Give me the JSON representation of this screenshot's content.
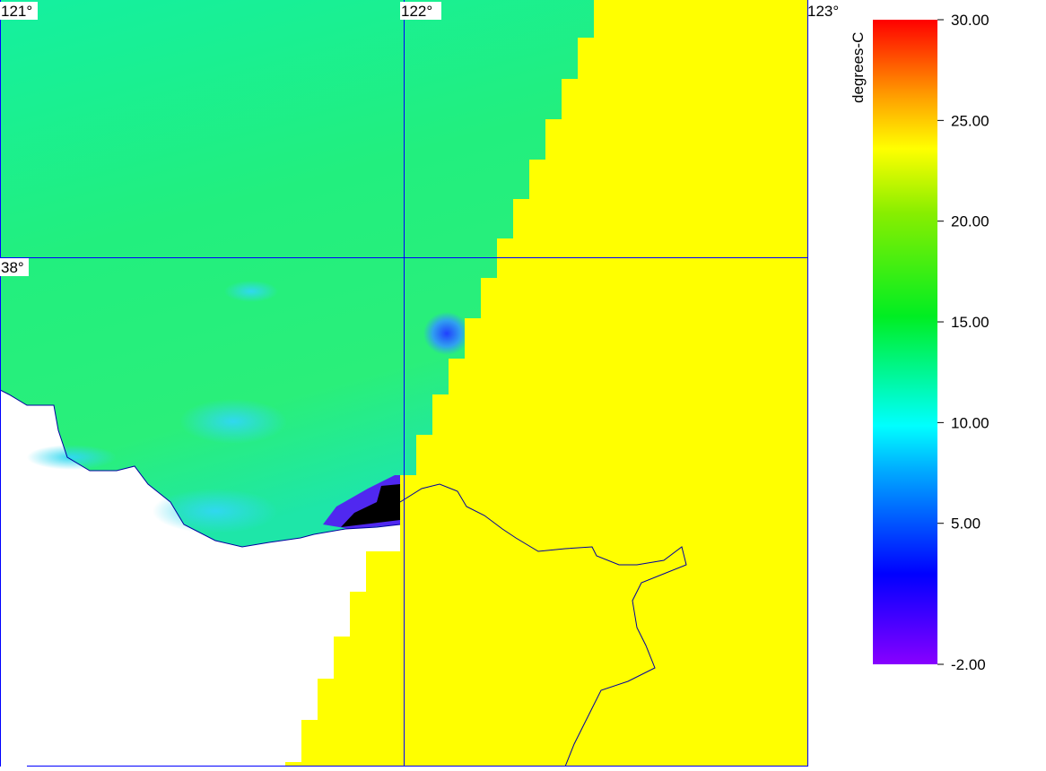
{
  "map": {
    "lon_labels": [
      "121°",
      "122°",
      "123°"
    ],
    "lat_labels": [
      "38°"
    ],
    "colorbar": {
      "label": "degrees-C",
      "range": [
        -2,
        30
      ],
      "ticks": [
        {
          "value": 30,
          "label": "30.00"
        },
        {
          "value": 25,
          "label": "25.00"
        },
        {
          "value": 20,
          "label": "20.00"
        },
        {
          "value": 15,
          "label": "15.00"
        },
        {
          "value": 10,
          "label": "10.00"
        },
        {
          "value": 5,
          "label": "5.00"
        },
        {
          "value": -2,
          "label": "-2.00"
        }
      ]
    }
  }
}
